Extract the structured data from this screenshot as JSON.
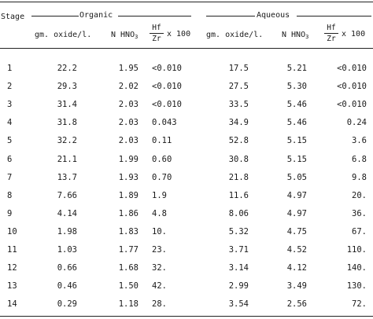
{
  "table": {
    "stage_header": "Stage",
    "group_organic": "Organic",
    "group_aqueous": "Aqueous",
    "col_oxide": "gm. oxide/l.",
    "col_hno3_prefix": "N HNO",
    "col_hno3_sub": "3",
    "col_ratio_top": "Hf",
    "col_ratio_bottom": "Zr",
    "col_ratio_suffix": "x 100",
    "rows": [
      {
        "stage": "1",
        "org_oxide": "22.2",
        "org_hno3": "1.95",
        "org_ratio": "<0.010",
        "aq_oxide": "17.5",
        "aq_hno3": "5.21",
        "aq_ratio": "<0.010"
      },
      {
        "stage": "2",
        "org_oxide": "29.3",
        "org_hno3": "2.02",
        "org_ratio": "<0.010",
        "aq_oxide": "27.5",
        "aq_hno3": "5.30",
        "aq_ratio": "<0.010"
      },
      {
        "stage": "3",
        "org_oxide": "31.4",
        "org_hno3": "2.03",
        "org_ratio": "<0.010",
        "aq_oxide": "33.5",
        "aq_hno3": "5.46",
        "aq_ratio": "<0.010"
      },
      {
        "stage": "4",
        "org_oxide": "31.8",
        "org_hno3": "2.03",
        "org_ratio": "0.043",
        "aq_oxide": "34.9",
        "aq_hno3": "5.46",
        "aq_ratio": "0.24"
      },
      {
        "stage": "5",
        "org_oxide": "32.2",
        "org_hno3": "2.03",
        "org_ratio": "0.11",
        "aq_oxide": "52.8",
        "aq_hno3": "5.15",
        "aq_ratio": "3.6"
      },
      {
        "stage": "6",
        "org_oxide": "21.1",
        "org_hno3": "1.99",
        "org_ratio": "0.60",
        "aq_oxide": "30.8",
        "aq_hno3": "5.15",
        "aq_ratio": "6.8"
      },
      {
        "stage": "7",
        "org_oxide": "13.7",
        "org_hno3": "1.93",
        "org_ratio": "0.70",
        "aq_oxide": "21.8",
        "aq_hno3": "5.05",
        "aq_ratio": "9.8"
      },
      {
        "stage": "8",
        "org_oxide": "7.66",
        "org_hno3": "1.89",
        "org_ratio": "1.9",
        "aq_oxide": "11.6",
        "aq_hno3": "4.97",
        "aq_ratio": "20."
      },
      {
        "stage": "9",
        "org_oxide": "4.14",
        "org_hno3": "1.86",
        "org_ratio": "4.8",
        "aq_oxide": "8.06",
        "aq_hno3": "4.97",
        "aq_ratio": "36."
      },
      {
        "stage": "10",
        "org_oxide": "1.98",
        "org_hno3": "1.83",
        "org_ratio": "10.",
        "aq_oxide": "5.32",
        "aq_hno3": "4.75",
        "aq_ratio": "67."
      },
      {
        "stage": "11",
        "org_oxide": "1.03",
        "org_hno3": "1.77",
        "org_ratio": "23.",
        "aq_oxide": "3.71",
        "aq_hno3": "4.52",
        "aq_ratio": "110."
      },
      {
        "stage": "12",
        "org_oxide": "0.66",
        "org_hno3": "1.68",
        "org_ratio": "32.",
        "aq_oxide": "3.14",
        "aq_hno3": "4.12",
        "aq_ratio": "140."
      },
      {
        "stage": "13",
        "org_oxide": "0.46",
        "org_hno3": "1.50",
        "org_ratio": "42.",
        "aq_oxide": "2.99",
        "aq_hno3": "3.49",
        "aq_ratio": "130."
      },
      {
        "stage": "14",
        "org_oxide": "0.29",
        "org_hno3": "1.18",
        "org_ratio": "28.",
        "aq_oxide": "3.54",
        "aq_hno3": "2.56",
        "aq_ratio": "72."
      }
    ]
  }
}
